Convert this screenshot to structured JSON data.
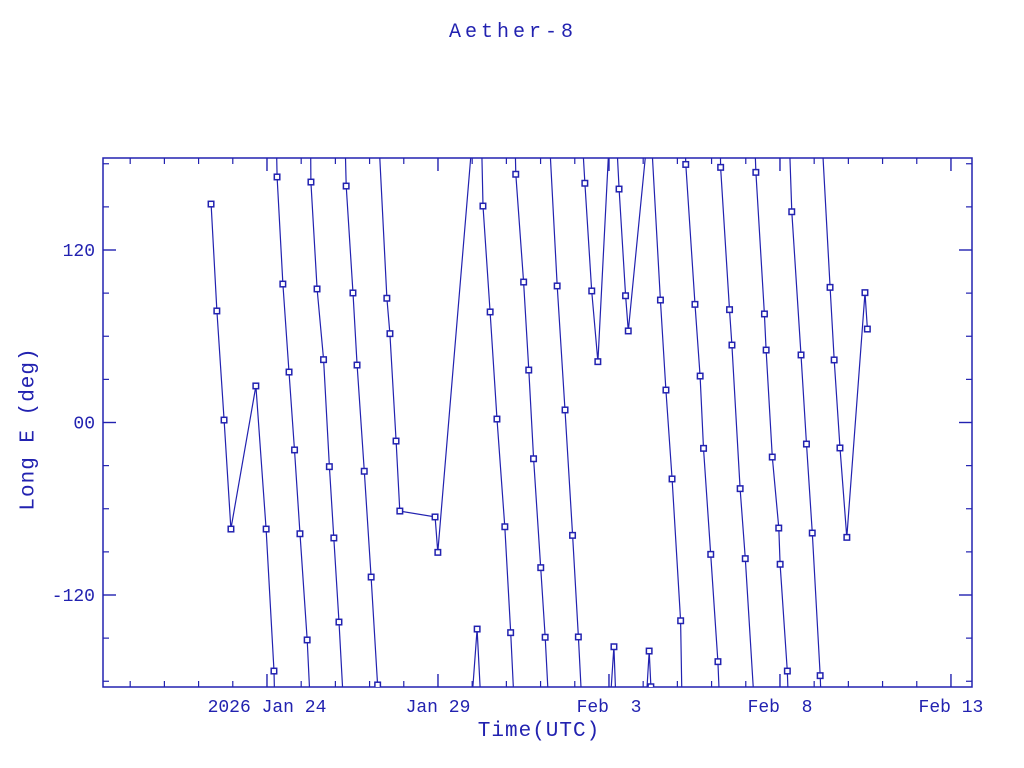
{
  "title": "Aether-8",
  "colors": {
    "plot": "#2222b0",
    "background": "#ffffff"
  },
  "x_axis": {
    "label": "Time(UTC)",
    "day_span": 25.41,
    "major_ticks": [
      {
        "day": 4.795,
        "label": "2026 Jan 24"
      },
      {
        "day": 9.795,
        "label": "Jan 29"
      },
      {
        "day": 14.795,
        "label": "Feb  3"
      },
      {
        "day": 19.795,
        "label": "Feb  8"
      },
      {
        "day": 24.795,
        "label": "Feb 13"
      }
    ],
    "minor_tick_days": [
      0.795,
      1.795,
      2.795,
      3.795,
      5.795,
      6.795,
      7.795,
      8.795,
      10.795,
      11.795,
      12.795,
      13.795,
      15.795,
      16.795,
      17.795,
      18.795,
      20.795,
      21.795,
      22.795,
      23.795
    ]
  },
  "y_axis": {
    "label": "Long E (deg)",
    "range_deg": [
      -184,
      184
    ],
    "major_ticks": [
      {
        "deg": 120,
        "label": "120"
      },
      {
        "deg": 0,
        "label": "00"
      },
      {
        "deg": -120,
        "label": "-120"
      }
    ],
    "minor_tick_degs": [
      180,
      150,
      90,
      60,
      30,
      -30,
      -60,
      -90,
      -150,
      -180
    ]
  },
  "chart_data": {
    "type": "line",
    "title": "Aether-8",
    "xlabel": "Time(UTC)",
    "ylabel": "Long E (deg)",
    "x_unit": "days since axis start (axis spans 2026 Jan ~19 to Feb ~13, major ticks every 5 days)",
    "ylim": [
      -184,
      184
    ],
    "grid": false,
    "legend": "none",
    "marker": "open-square",
    "points": [
      [
        3.16,
        152.0
      ],
      [
        3.33,
        77.6
      ],
      [
        3.54,
        1.7
      ],
      [
        3.74,
        -74.1
      ],
      [
        4.47,
        25.4
      ],
      [
        4.77,
        -74.1
      ],
      [
        5.0,
        -172.9
      ],
      [
        5.09,
        170.8
      ],
      [
        5.26,
        96.3
      ],
      [
        5.44,
        35.1
      ],
      [
        5.6,
        -19.1
      ],
      [
        5.76,
        -77.4
      ],
      [
        5.97,
        -151.3
      ],
      [
        6.08,
        167.3
      ],
      [
        6.26,
        92.9
      ],
      [
        6.45,
        43.7
      ],
      [
        6.62,
        -30.7
      ],
      [
        6.75,
        -80.3
      ],
      [
        6.9,
        -138.8
      ],
      [
        7.11,
        164.5
      ],
      [
        7.31,
        90.1
      ],
      [
        7.43,
        40.0
      ],
      [
        7.64,
        -33.9
      ],
      [
        7.84,
        -107.5
      ],
      [
        8.03,
        -182.6
      ],
      [
        8.3,
        86.4
      ],
      [
        8.39,
        61.8
      ],
      [
        8.57,
        -12.9
      ],
      [
        8.68,
        -61.6
      ],
      [
        9.71,
        -65.7
      ],
      [
        9.79,
        -90.3
      ],
      [
        10.94,
        -143.7
      ],
      [
        11.11,
        150.6
      ],
      [
        11.32,
        76.9
      ],
      [
        11.52,
        2.4
      ],
      [
        11.75,
        -72.5
      ],
      [
        11.92,
        -146.2
      ],
      [
        12.07,
        172.7
      ],
      [
        12.3,
        97.7
      ],
      [
        12.45,
        36.5
      ],
      [
        12.59,
        -25.2
      ],
      [
        12.8,
        -101.0
      ],
      [
        12.93,
        -149.4
      ],
      [
        13.28,
        95.0
      ],
      [
        13.51,
        8.7
      ],
      [
        13.73,
        -78.5
      ],
      [
        13.9,
        -149.2
      ],
      [
        14.09,
        166.4
      ],
      [
        14.29,
        91.5
      ],
      [
        14.47,
        42.3
      ],
      [
        14.94,
        -156.0
      ],
      [
        15.09,
        162.4
      ],
      [
        15.28,
        88.2
      ],
      [
        15.36,
        63.7
      ],
      [
        15.97,
        -159.0
      ],
      [
        16.02,
        -183.8
      ],
      [
        16.3,
        85.2
      ],
      [
        16.46,
        22.6
      ],
      [
        16.64,
        -39.3
      ],
      [
        16.89,
        -137.9
      ],
      [
        17.04,
        179.5
      ],
      [
        17.31,
        82.2
      ],
      [
        17.46,
        32.3
      ],
      [
        17.56,
        -18.0
      ],
      [
        17.77,
        -91.7
      ],
      [
        17.98,
        -166.4
      ],
      [
        18.06,
        177.5
      ],
      [
        18.32,
        78.5
      ],
      [
        18.39,
        53.9
      ],
      [
        18.63,
        -46.0
      ],
      [
        18.78,
        -94.7
      ],
      [
        19.09,
        174.0
      ],
      [
        19.34,
        75.5
      ],
      [
        19.39,
        50.4
      ],
      [
        19.57,
        -24.0
      ],
      [
        19.76,
        -73.4
      ],
      [
        19.8,
        -98.6
      ],
      [
        20.01,
        -172.9
      ],
      [
        20.14,
        146.6
      ],
      [
        20.41,
        47.0
      ],
      [
        20.57,
        -15.0
      ],
      [
        20.74,
        -76.9
      ],
      [
        20.97,
        -176.1
      ],
      [
        21.26,
        94.0
      ],
      [
        21.38,
        43.5
      ],
      [
        21.55,
        -17.7
      ],
      [
        21.75,
        -79.9
      ],
      [
        22.28,
        90.3
      ],
      [
        22.35,
        65.0
      ]
    ],
    "polylines": [
      [
        [
          3.16,
          152.0
        ],
        [
          3.33,
          77.6
        ],
        [
          3.54,
          1.7
        ],
        [
          3.74,
          -74.1
        ],
        [
          4.47,
          25.4
        ],
        [
          4.77,
          -74.1
        ],
        [
          5.0,
          -172.9
        ],
        [
          5.02,
          -195
        ]
      ],
      [
        [
          5.07,
          195
        ],
        [
          5.09,
          170.8
        ],
        [
          5.26,
          96.3
        ],
        [
          5.44,
          35.1
        ],
        [
          5.6,
          -19.1
        ],
        [
          5.76,
          -77.4
        ],
        [
          5.97,
          -151.3
        ],
        [
          6.06,
          -195
        ]
      ],
      [
        [
          6.07,
          195
        ],
        [
          6.08,
          167.3
        ],
        [
          6.26,
          92.9
        ],
        [
          6.45,
          43.7
        ],
        [
          6.62,
          -30.7
        ],
        [
          6.75,
          -80.3
        ],
        [
          6.9,
          -138.8
        ],
        [
          7.03,
          -195
        ]
      ],
      [
        [
          7.08,
          195
        ],
        [
          7.11,
          164.5
        ],
        [
          7.31,
          90.1
        ],
        [
          7.43,
          40.0
        ],
        [
          7.64,
          -33.9
        ],
        [
          7.84,
          -107.5
        ],
        [
          8.03,
          -182.6
        ],
        [
          8.04,
          -195
        ]
      ],
      [
        [
          8.07,
          195
        ],
        [
          8.3,
          86.4
        ],
        [
          8.39,
          61.8
        ],
        [
          8.57,
          -12.9
        ],
        [
          8.68,
          -61.6
        ],
        [
          9.71,
          -65.7
        ],
        [
          9.79,
          -90.3
        ],
        [
          10.79,
          195
        ]
      ],
      [
        [
          10.78,
          -195
        ],
        [
          10.94,
          -143.7
        ],
        [
          11.05,
          -195
        ]
      ],
      [
        [
          11.07,
          195
        ],
        [
          11.11,
          150.6
        ],
        [
          11.32,
          76.9
        ],
        [
          11.52,
          2.4
        ],
        [
          11.75,
          -72.5
        ],
        [
          11.92,
          -146.2
        ],
        [
          12.02,
          -195
        ]
      ],
      [
        [
          12.05,
          195
        ],
        [
          12.07,
          172.7
        ],
        [
          12.3,
          97.7
        ],
        [
          12.45,
          36.5
        ],
        [
          12.59,
          -25.2
        ],
        [
          12.8,
          -101.0
        ],
        [
          12.93,
          -149.4
        ],
        [
          13.03,
          -195
        ]
      ],
      [
        [
          13.06,
          195
        ],
        [
          13.28,
          95.0
        ],
        [
          13.51,
          8.7
        ],
        [
          13.73,
          -78.5
        ],
        [
          13.9,
          -149.2
        ],
        [
          14.0,
          -195
        ]
      ],
      [
        [
          14.02,
          195
        ],
        [
          14.09,
          166.4
        ],
        [
          14.29,
          91.5
        ],
        [
          14.47,
          42.3
        ],
        [
          14.8,
          195
        ]
      ],
      [
        [
          14.83,
          -195
        ],
        [
          14.94,
          -156.0
        ],
        [
          15.0,
          -195
        ]
      ],
      [
        [
          15.02,
          195
        ],
        [
          15.09,
          162.4
        ],
        [
          15.28,
          88.2
        ],
        [
          15.36,
          63.7
        ],
        [
          15.9,
          195
        ]
      ],
      [
        [
          15.88,
          -195
        ],
        [
          15.97,
          -159.0
        ],
        [
          16.02,
          -183.8
        ],
        [
          16.03,
          -195
        ]
      ],
      [
        [
          16.04,
          195
        ],
        [
          16.3,
          85.2
        ],
        [
          16.46,
          22.6
        ],
        [
          16.64,
          -39.3
        ],
        [
          16.89,
          -137.9
        ],
        [
          16.93,
          -195
        ]
      ],
      [
        [
          17.02,
          195
        ],
        [
          17.04,
          179.5
        ],
        [
          17.31,
          82.2
        ],
        [
          17.46,
          32.3
        ],
        [
          17.56,
          -18.0
        ],
        [
          17.77,
          -91.7
        ],
        [
          17.98,
          -166.4
        ],
        [
          18.03,
          -195
        ]
      ],
      [
        [
          18.05,
          195
        ],
        [
          18.06,
          177.5
        ],
        [
          18.32,
          78.5
        ],
        [
          18.39,
          53.9
        ],
        [
          18.63,
          -46.0
        ],
        [
          18.78,
          -94.7
        ],
        [
          19.04,
          -195
        ]
      ],
      [
        [
          19.06,
          195
        ],
        [
          19.09,
          174.0
        ],
        [
          19.34,
          75.5
        ],
        [
          19.39,
          50.4
        ],
        [
          19.57,
          -24.0
        ],
        [
          19.76,
          -73.4
        ],
        [
          19.8,
          -98.6
        ],
        [
          20.01,
          -172.9
        ],
        [
          20.04,
          -195
        ]
      ],
      [
        [
          20.07,
          195
        ],
        [
          20.14,
          146.6
        ],
        [
          20.41,
          47.0
        ],
        [
          20.57,
          -15.0
        ],
        [
          20.74,
          -76.9
        ],
        [
          20.97,
          -176.1
        ],
        [
          21.0,
          -195
        ]
      ],
      [
        [
          21.03,
          195
        ],
        [
          21.26,
          94.0
        ],
        [
          21.38,
          43.5
        ],
        [
          21.55,
          -17.7
        ],
        [
          21.75,
          -79.9
        ],
        [
          22.28,
          90.3
        ],
        [
          22.35,
          65.0
        ]
      ]
    ]
  }
}
